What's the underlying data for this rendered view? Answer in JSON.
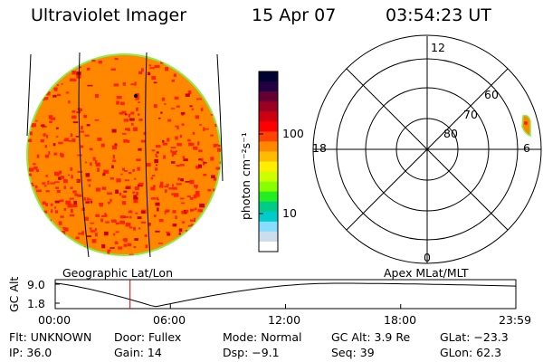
{
  "header": {
    "instrument": "Ultraviolet Imager",
    "date": "15 Apr 07",
    "time": "03:54:23 UT"
  },
  "colorbar": {
    "unit_label": "photon cm⁻²s⁻¹",
    "ticks": [
      "100",
      "10"
    ],
    "colors": [
      "#000033",
      "#220044",
      "#660033",
      "#990022",
      "#cc0011",
      "#ff0000",
      "#ff4400",
      "#ff8800",
      "#ffbb00",
      "#ffee00",
      "#ccff00",
      "#88ff00",
      "#22ee22",
      "#00cc88",
      "#00cccc",
      "#88ddff",
      "#ccddee",
      "#ffffff"
    ]
  },
  "polar_plot": {
    "mlt_labels": {
      "top": "12",
      "left": "18",
      "right": "6",
      "bottom": "0"
    },
    "lat_labels": [
      "60",
      "70",
      "80"
    ]
  },
  "captions": {
    "left": "Geographic Lat/Lon",
    "right": "Apex MLat/MLT"
  },
  "altitude_plot": {
    "axis_label": "GC Alt",
    "y_ticks": [
      "9.0",
      "1.8"
    ],
    "x_ticks": [
      "00:00",
      "06:00",
      "12:00",
      "18:00",
      "23:59"
    ],
    "current_time_hours": 3.9
  },
  "status": {
    "flt": "Flt: UNKNOWN",
    "door": "Door: Fullex",
    "mode": "Mode: Normal",
    "gc_alt": "GC Alt: 3.9 Re",
    "glat": "GLat: −23.3",
    "ip": "IP: 36.0",
    "gain": "Gain: 14",
    "dsp": "Dsp:   −9.1",
    "seq": "Seq: 39",
    "glon": "GLon:  62.3"
  },
  "colors": {
    "disk_base": "#ff8800",
    "disk_spot": "#ff2200",
    "disk_rim": "#88ee44",
    "current_time_marker": "#cc0000"
  }
}
